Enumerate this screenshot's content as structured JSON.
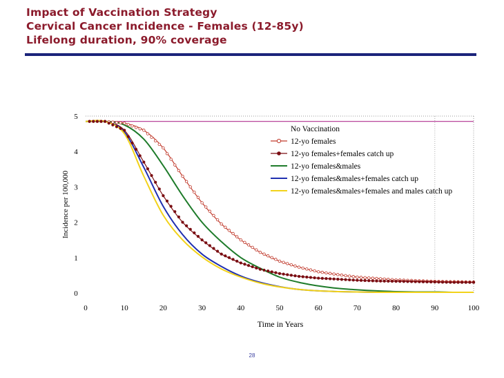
{
  "slide": {
    "title_lines": [
      "Impact of Vaccination Strategy",
      "Cervical Cancer Incidence - Females (12-85y)",
      "Lifelong duration, 90% coverage"
    ],
    "page_number": "28",
    "colors": {
      "title": "#8b1a2b",
      "rule": "#1b237a"
    }
  },
  "chart_data": {
    "type": "line",
    "xlabel": "Time in Years",
    "ylabel": "Incidence per 100,000",
    "xlim": [
      0,
      100
    ],
    "ylim": [
      0,
      5
    ],
    "x_ticks": [
      0,
      10,
      20,
      30,
      40,
      50,
      60,
      70,
      80,
      90,
      100
    ],
    "y_ticks": [
      0,
      1,
      2,
      3,
      4,
      5
    ],
    "grid": false,
    "reference_line_x": 90,
    "legend_position": "top-right",
    "x": [
      0,
      5,
      10,
      15,
      20,
      25,
      30,
      35,
      40,
      45,
      50,
      55,
      60,
      65,
      70,
      75,
      80,
      85,
      90,
      95,
      100
    ],
    "series": [
      {
        "name": "No Vaccination",
        "color": "#b03090",
        "marker": "none",
        "values": [
          4.85,
          4.85,
          4.85,
          4.85,
          4.85,
          4.85,
          4.85,
          4.85,
          4.85,
          4.85,
          4.85,
          4.85,
          4.85,
          4.85,
          4.85,
          4.85,
          4.85,
          4.85,
          4.85,
          4.85,
          4.85
        ]
      },
      {
        "name": "12-yo females",
        "color": "#c0392b",
        "marker": "open-circle",
        "values": [
          4.85,
          4.85,
          4.8,
          4.6,
          4.1,
          3.3,
          2.55,
          1.95,
          1.5,
          1.15,
          0.9,
          0.73,
          0.6,
          0.52,
          0.45,
          0.41,
          0.37,
          0.35,
          0.33,
          0.32,
          0.31
        ]
      },
      {
        "name": "12-yo females+females catch up",
        "color": "#7a0d12",
        "marker": "filled-diamond",
        "values": [
          4.85,
          4.85,
          4.6,
          3.7,
          2.75,
          2.0,
          1.5,
          1.1,
          0.85,
          0.67,
          0.55,
          0.47,
          0.42,
          0.39,
          0.36,
          0.34,
          0.33,
          0.32,
          0.31,
          0.3,
          0.3
        ]
      },
      {
        "name": "12-yo females&males",
        "color": "#1e7b2a",
        "marker": "none",
        "values": [
          4.85,
          4.85,
          4.75,
          4.35,
          3.6,
          2.75,
          2.0,
          1.45,
          1.0,
          0.7,
          0.45,
          0.3,
          0.2,
          0.13,
          0.09,
          0.06,
          0.04,
          0.03,
          0.03,
          0.02,
          0.02
        ]
      },
      {
        "name": "12-yo females&males+females catch up",
        "color": "#1f2fb0",
        "marker": "none",
        "values": [
          4.85,
          4.85,
          4.55,
          3.55,
          2.45,
          1.65,
          1.1,
          0.75,
          0.48,
          0.3,
          0.18,
          0.1,
          0.06,
          0.04,
          0.03,
          0.02,
          0.02,
          0.02,
          0.02,
          0.02,
          0.02
        ]
      },
      {
        "name": "12-yo females&males+females and males catch up",
        "color": "#f2d21a",
        "marker": "none",
        "values": [
          4.85,
          4.85,
          4.5,
          3.3,
          2.2,
          1.5,
          1.02,
          0.68,
          0.45,
          0.28,
          0.17,
          0.1,
          0.06,
          0.04,
          0.03,
          0.02,
          0.02,
          0.02,
          0.02,
          0.02,
          0.02
        ]
      }
    ]
  }
}
